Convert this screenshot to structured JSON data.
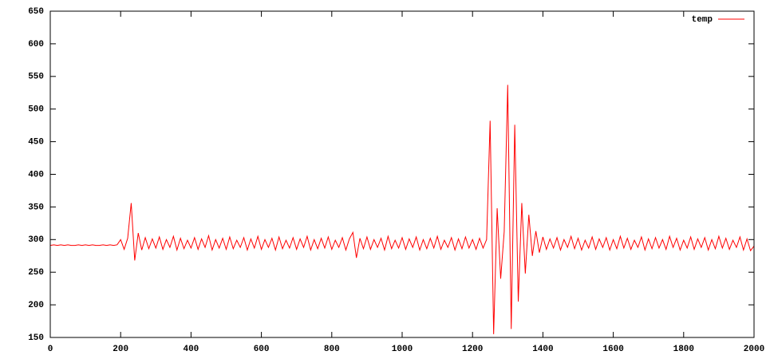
{
  "chart_data": {
    "type": "line",
    "x": [
      0,
      10,
      20,
      30,
      40,
      50,
      60,
      70,
      80,
      90,
      100,
      110,
      120,
      130,
      140,
      150,
      160,
      170,
      180,
      190,
      200,
      210,
      220,
      230,
      240,
      250,
      260,
      270,
      280,
      290,
      300,
      310,
      320,
      330,
      340,
      350,
      360,
      370,
      380,
      390,
      400,
      410,
      420,
      430,
      440,
      450,
      460,
      470,
      480,
      490,
      500,
      510,
      520,
      530,
      540,
      550,
      560,
      570,
      580,
      590,
      600,
      610,
      620,
      630,
      640,
      650,
      660,
      670,
      680,
      690,
      700,
      710,
      720,
      730,
      740,
      750,
      760,
      770,
      780,
      790,
      800,
      810,
      820,
      830,
      840,
      850,
      860,
      870,
      880,
      890,
      900,
      910,
      920,
      930,
      940,
      950,
      960,
      970,
      980,
      990,
      1000,
      1010,
      1020,
      1030,
      1040,
      1050,
      1060,
      1070,
      1080,
      1090,
      1100,
      1110,
      1120,
      1130,
      1140,
      1150,
      1160,
      1170,
      1180,
      1190,
      1200,
      1210,
      1220,
      1230,
      1240,
      1250,
      1260,
      1270,
      1280,
      1290,
      1300,
      1310,
      1320,
      1330,
      1340,
      1350,
      1360,
      1370,
      1380,
      1390,
      1400,
      1410,
      1420,
      1430,
      1440,
      1450,
      1460,
      1470,
      1480,
      1490,
      1500,
      1510,
      1520,
      1530,
      1540,
      1550,
      1560,
      1570,
      1580,
      1590,
      1600,
      1610,
      1620,
      1630,
      1640,
      1650,
      1660,
      1670,
      1680,
      1690,
      1700,
      1710,
      1720,
      1730,
      1740,
      1750,
      1760,
      1770,
      1780,
      1790,
      1800,
      1810,
      1820,
      1830,
      1840,
      1850,
      1860,
      1870,
      1880,
      1890,
      1900,
      1910,
      1920,
      1930,
      1940,
      1950,
      1960,
      1970,
      1980,
      1990,
      2000
    ],
    "series": [
      {
        "name": "temp",
        "color": "#ff0000",
        "values": [
          291,
          292,
          291,
          292,
          291,
          292,
          291,
          291,
          292,
          291,
          292,
          291,
          292,
          291,
          291,
          292,
          291,
          292,
          291,
          292,
          300,
          285,
          302,
          356,
          268,
          310,
          284,
          303,
          286,
          301,
          287,
          304,
          285,
          300,
          288,
          305,
          284,
          302,
          286,
          299,
          287,
          303,
          285,
          301,
          288,
          306,
          284,
          300,
          287,
          302,
          285,
          304,
          286,
          299,
          288,
          303,
          284,
          301,
          287,
          305,
          285,
          300,
          288,
          302,
          284,
          304,
          286,
          299,
          287,
          303,
          285,
          301,
          288,
          305,
          284,
          300,
          286,
          302,
          287,
          304,
          285,
          299,
          288,
          303,
          284,
          301,
          311,
          272,
          302,
          286,
          304,
          285,
          300,
          288,
          302,
          284,
          305,
          286,
          299,
          287,
          303,
          285,
          301,
          288,
          304,
          284,
          300,
          286,
          302,
          287,
          305,
          285,
          299,
          288,
          303,
          284,
          301,
          286,
          304,
          287,
          300,
          285,
          302,
          287,
          300,
          482,
          155,
          348,
          240,
          312,
          537,
          163,
          476,
          205,
          356,
          248,
          338,
          275,
          313,
          280,
          304,
          285,
          301,
          287,
          303,
          284,
          300,
          288,
          305,
          286,
          302,
          284,
          299,
          287,
          304,
          285,
          301,
          288,
          303,
          284,
          300,
          286,
          305,
          287,
          302,
          285,
          299,
          288,
          304,
          284,
          301,
          286,
          303,
          287,
          300,
          285,
          305,
          288,
          302,
          284,
          299,
          287,
          304,
          285,
          301,
          288,
          303,
          284,
          300,
          286,
          305,
          287,
          302,
          285,
          299,
          288,
          304,
          284,
          301,
          283,
          290
        ]
      }
    ],
    "xlim": [
      0,
      2000
    ],
    "xticks": [
      0,
      200,
      400,
      600,
      800,
      1000,
      1200,
      1400,
      1600,
      1800,
      2000
    ],
    "ylim": [
      150,
      650
    ],
    "yticks": [
      150,
      200,
      250,
      300,
      350,
      400,
      450,
      500,
      550,
      600,
      650
    ],
    "legend": "top-right"
  }
}
